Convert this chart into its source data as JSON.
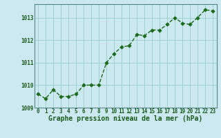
{
  "x": [
    0,
    1,
    2,
    3,
    4,
    5,
    6,
    7,
    8,
    9,
    10,
    11,
    12,
    13,
    14,
    15,
    16,
    17,
    18,
    19,
    20,
    21,
    22,
    23
  ],
  "y": [
    1009.6,
    1009.4,
    1009.8,
    1009.5,
    1009.5,
    1009.6,
    1010.0,
    1010.0,
    1010.0,
    1011.0,
    1011.4,
    1011.7,
    1011.75,
    1012.25,
    1012.2,
    1012.45,
    1012.45,
    1012.7,
    1013.0,
    1012.75,
    1012.7,
    1013.0,
    1013.35,
    1013.3
  ],
  "line_color": "#1a6b1a",
  "marker_color": "#1a6b1a",
  "bg_color": "#cce8f0",
  "grid_color": "#99cccc",
  "xlabel": "Graphe pression niveau de la mer (hPa)",
  "label_color": "#1a5c1a",
  "ylim": [
    1009.0,
    1013.6
  ],
  "yticks": [
    1009,
    1010,
    1011,
    1012,
    1013
  ],
  "xlim": [
    -0.5,
    23.5
  ],
  "xticks": [
    0,
    1,
    2,
    3,
    4,
    5,
    6,
    7,
    8,
    9,
    10,
    11,
    12,
    13,
    14,
    15,
    16,
    17,
    18,
    19,
    20,
    21,
    22,
    23
  ],
  "tick_fontsize": 5.5,
  "xlabel_fontsize": 7.0,
  "marker_size": 2.8,
  "line_width": 1.0
}
